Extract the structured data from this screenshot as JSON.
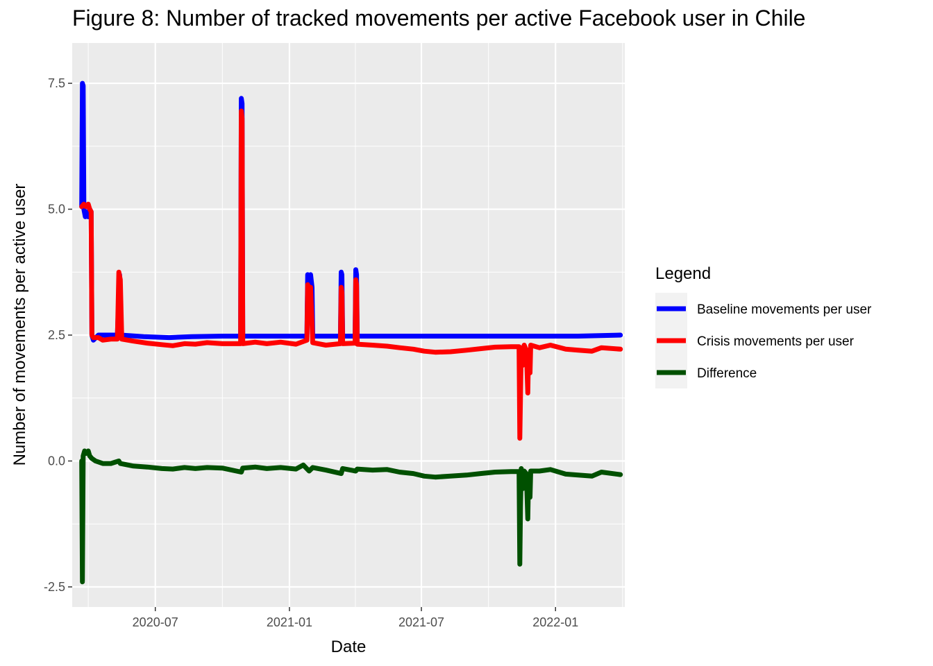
{
  "chart_data": {
    "type": "line",
    "title": "Figure 8: Number of tracked movements per active Facebook user in Chile",
    "xlabel": "Date",
    "ylabel": "Number of movements per active user",
    "xlim": [
      "2020-03-09",
      "2022-04-06"
    ],
    "ylim": [
      -2.9,
      8.3
    ],
    "x_ticks": [
      {
        "label": "2020-07",
        "date": "2020-07-01"
      },
      {
        "label": "2021-01",
        "date": "2021-01-01"
      },
      {
        "label": "2021-07",
        "date": "2021-07-01"
      },
      {
        "label": "2022-01",
        "date": "2022-01-01"
      }
    ],
    "y_ticks": [
      {
        "label": "-2.5",
        "value": -2.5
      },
      {
        "label": "0.0",
        "value": 0.0
      },
      {
        "label": "2.5",
        "value": 2.5
      },
      {
        "label": "5.0",
        "value": 5.0
      },
      {
        "label": "7.5",
        "value": 7.5
      }
    ],
    "grid": true,
    "legend_placement": "right",
    "legend_title": "Legend",
    "series": [
      {
        "name": "Baseline movements per user",
        "color": "#0000ff",
        "points": [
          [
            "2020-03-22",
            5.05
          ],
          [
            "2020-03-23",
            7.5
          ],
          [
            "2020-03-24",
            7.45
          ],
          [
            "2020-03-25",
            5.0
          ],
          [
            "2020-03-27",
            4.85
          ],
          [
            "2020-03-29",
            4.95
          ],
          [
            "2020-03-31",
            4.85
          ],
          [
            "2020-04-02",
            5.0
          ],
          [
            "2020-04-04",
            4.95
          ],
          [
            "2020-04-05",
            2.5
          ],
          [
            "2020-04-07",
            2.4
          ],
          [
            "2020-04-14",
            2.5
          ],
          [
            "2020-05-01",
            2.5
          ],
          [
            "2020-05-10",
            2.5
          ],
          [
            "2020-05-13",
            3.7
          ],
          [
            "2020-05-15",
            2.5
          ],
          [
            "2020-06-15",
            2.47
          ],
          [
            "2020-07-20",
            2.45
          ],
          [
            "2020-08-20",
            2.47
          ],
          [
            "2020-10-01",
            2.48
          ],
          [
            "2020-10-26",
            2.48
          ],
          [
            "2020-10-27",
            7.2
          ],
          [
            "2020-10-28",
            7.1
          ],
          [
            "2020-10-29",
            2.48
          ],
          [
            "2020-12-01",
            2.48
          ],
          [
            "2021-01-10",
            2.48
          ],
          [
            "2021-01-25",
            2.48
          ],
          [
            "2021-01-26",
            3.7
          ],
          [
            "2021-01-28",
            3.65
          ],
          [
            "2021-01-30",
            3.7
          ],
          [
            "2021-02-01",
            3.45
          ],
          [
            "2021-02-02",
            2.48
          ],
          [
            "2021-03-12",
            2.48
          ],
          [
            "2021-03-13",
            3.75
          ],
          [
            "2021-03-14",
            3.7
          ],
          [
            "2021-03-15",
            2.48
          ],
          [
            "2021-04-01",
            2.48
          ],
          [
            "2021-04-02",
            3.8
          ],
          [
            "2021-04-03",
            3.7
          ],
          [
            "2021-04-04",
            2.48
          ],
          [
            "2021-06-01",
            2.48
          ],
          [
            "2021-08-01",
            2.48
          ],
          [
            "2021-10-01",
            2.48
          ],
          [
            "2021-12-01",
            2.48
          ],
          [
            "2022-02-01",
            2.48
          ],
          [
            "2022-03-31",
            2.5
          ]
        ]
      },
      {
        "name": "Crisis movements per user",
        "color": "#ff0000",
        "points": [
          [
            "2020-03-22",
            5.05
          ],
          [
            "2020-03-25",
            5.1
          ],
          [
            "2020-03-28",
            5.05
          ],
          [
            "2020-03-31",
            5.1
          ],
          [
            "2020-04-02",
            5.0
          ],
          [
            "2020-04-04",
            4.95
          ],
          [
            "2020-04-05",
            2.5
          ],
          [
            "2020-04-07",
            2.45
          ],
          [
            "2020-04-14",
            2.45
          ],
          [
            "2020-04-20",
            2.4
          ],
          [
            "2020-05-01",
            2.42
          ],
          [
            "2020-05-10",
            2.42
          ],
          [
            "2020-05-12",
            3.75
          ],
          [
            "2020-05-14",
            3.6
          ],
          [
            "2020-05-16",
            2.42
          ],
          [
            "2020-06-01",
            2.38
          ],
          [
            "2020-06-20",
            2.34
          ],
          [
            "2020-07-10",
            2.31
          ],
          [
            "2020-07-25",
            2.29
          ],
          [
            "2020-08-10",
            2.33
          ],
          [
            "2020-08-25",
            2.32
          ],
          [
            "2020-09-10",
            2.35
          ],
          [
            "2020-10-01",
            2.33
          ],
          [
            "2020-10-26",
            2.33
          ],
          [
            "2020-10-27",
            6.95
          ],
          [
            "2020-10-28",
            6.8
          ],
          [
            "2020-10-29",
            2.33
          ],
          [
            "2020-11-15",
            2.36
          ],
          [
            "2020-12-01",
            2.33
          ],
          [
            "2020-12-20",
            2.36
          ],
          [
            "2021-01-10",
            2.32
          ],
          [
            "2021-01-25",
            2.4
          ],
          [
            "2021-01-26",
            3.5
          ],
          [
            "2021-01-28",
            3.4
          ],
          [
            "2021-01-30",
            3.45
          ],
          [
            "2021-02-02",
            2.35
          ],
          [
            "2021-02-20",
            2.3
          ],
          [
            "2021-03-12",
            2.33
          ],
          [
            "2021-03-13",
            3.45
          ],
          [
            "2021-03-14",
            3.35
          ],
          [
            "2021-03-15",
            2.33
          ],
          [
            "2021-04-01",
            2.34
          ],
          [
            "2021-04-02",
            3.6
          ],
          [
            "2021-04-03",
            3.5
          ],
          [
            "2021-04-04",
            2.32
          ],
          [
            "2021-04-25",
            2.3
          ],
          [
            "2021-05-15",
            2.28
          ],
          [
            "2021-06-01",
            2.25
          ],
          [
            "2021-06-20",
            2.22
          ],
          [
            "2021-07-05",
            2.18
          ],
          [
            "2021-07-20",
            2.16
          ],
          [
            "2021-08-10",
            2.17
          ],
          [
            "2021-09-01",
            2.2
          ],
          [
            "2021-09-20",
            2.23
          ],
          [
            "2021-10-10",
            2.26
          ],
          [
            "2021-11-01",
            2.27
          ],
          [
            "2021-11-12",
            2.27
          ],
          [
            "2021-11-13",
            0.45
          ],
          [
            "2021-11-14",
            1.3
          ],
          [
            "2021-11-15",
            2.25
          ],
          [
            "2021-11-17",
            1.9
          ],
          [
            "2021-11-19",
            2.3
          ],
          [
            "2021-11-22",
            2.2
          ],
          [
            "2021-11-24",
            1.35
          ],
          [
            "2021-11-25",
            2.2
          ],
          [
            "2021-11-27",
            1.75
          ],
          [
            "2021-11-28",
            2.3
          ],
          [
            "2021-12-10",
            2.25
          ],
          [
            "2021-12-25",
            2.3
          ],
          [
            "2022-01-15",
            2.22
          ],
          [
            "2022-02-01",
            2.2
          ],
          [
            "2022-02-20",
            2.18
          ],
          [
            "2022-03-05",
            2.25
          ],
          [
            "2022-03-31",
            2.22
          ]
        ]
      },
      {
        "name": "Difference",
        "color": "#005000",
        "points": [
          [
            "2020-03-22",
            0.0
          ],
          [
            "2020-03-23",
            -2.4
          ],
          [
            "2020-03-24",
            0.1
          ],
          [
            "2020-03-26",
            0.2
          ],
          [
            "2020-03-28",
            0.15
          ],
          [
            "2020-03-31",
            0.2
          ],
          [
            "2020-04-02",
            0.1
          ],
          [
            "2020-04-05",
            0.05
          ],
          [
            "2020-04-10",
            0.0
          ],
          [
            "2020-04-20",
            -0.05
          ],
          [
            "2020-05-01",
            -0.05
          ],
          [
            "2020-05-12",
            0.0
          ],
          [
            "2020-05-14",
            -0.05
          ],
          [
            "2020-06-01",
            -0.1
          ],
          [
            "2020-06-20",
            -0.12
          ],
          [
            "2020-07-10",
            -0.15
          ],
          [
            "2020-07-25",
            -0.16
          ],
          [
            "2020-08-10",
            -0.13
          ],
          [
            "2020-08-25",
            -0.15
          ],
          [
            "2020-09-10",
            -0.13
          ],
          [
            "2020-10-01",
            -0.14
          ],
          [
            "2020-10-27",
            -0.22
          ],
          [
            "2020-10-29",
            -0.14
          ],
          [
            "2020-11-15",
            -0.12
          ],
          [
            "2020-12-01",
            -0.15
          ],
          [
            "2020-12-20",
            -0.13
          ],
          [
            "2021-01-10",
            -0.16
          ],
          [
            "2021-01-20",
            -0.08
          ],
          [
            "2021-01-28",
            -0.2
          ],
          [
            "2021-02-02",
            -0.13
          ],
          [
            "2021-02-20",
            -0.18
          ],
          [
            "2021-03-13",
            -0.25
          ],
          [
            "2021-03-15",
            -0.15
          ],
          [
            "2021-04-02",
            -0.2
          ],
          [
            "2021-04-04",
            -0.16
          ],
          [
            "2021-04-25",
            -0.18
          ],
          [
            "2021-05-15",
            -0.17
          ],
          [
            "2021-06-01",
            -0.22
          ],
          [
            "2021-06-20",
            -0.25
          ],
          [
            "2021-07-05",
            -0.3
          ],
          [
            "2021-07-20",
            -0.32
          ],
          [
            "2021-08-10",
            -0.3
          ],
          [
            "2021-09-01",
            -0.28
          ],
          [
            "2021-09-20",
            -0.25
          ],
          [
            "2021-10-10",
            -0.22
          ],
          [
            "2021-11-01",
            -0.21
          ],
          [
            "2021-11-12",
            -0.21
          ],
          [
            "2021-11-13",
            -2.05
          ],
          [
            "2021-11-14",
            -0.9
          ],
          [
            "2021-11-15",
            -0.15
          ],
          [
            "2021-11-17",
            -0.55
          ],
          [
            "2021-11-19",
            -0.2
          ],
          [
            "2021-11-22",
            -0.25
          ],
          [
            "2021-11-24",
            -1.15
          ],
          [
            "2021-11-25",
            -0.3
          ],
          [
            "2021-11-27",
            -0.72
          ],
          [
            "2021-11-28",
            -0.2
          ],
          [
            "2021-12-10",
            -0.2
          ],
          [
            "2021-12-25",
            -0.17
          ],
          [
            "2022-01-15",
            -0.26
          ],
          [
            "2022-02-01",
            -0.28
          ],
          [
            "2022-02-20",
            -0.3
          ],
          [
            "2022-03-05",
            -0.22
          ],
          [
            "2022-03-31",
            -0.27
          ]
        ]
      }
    ]
  }
}
